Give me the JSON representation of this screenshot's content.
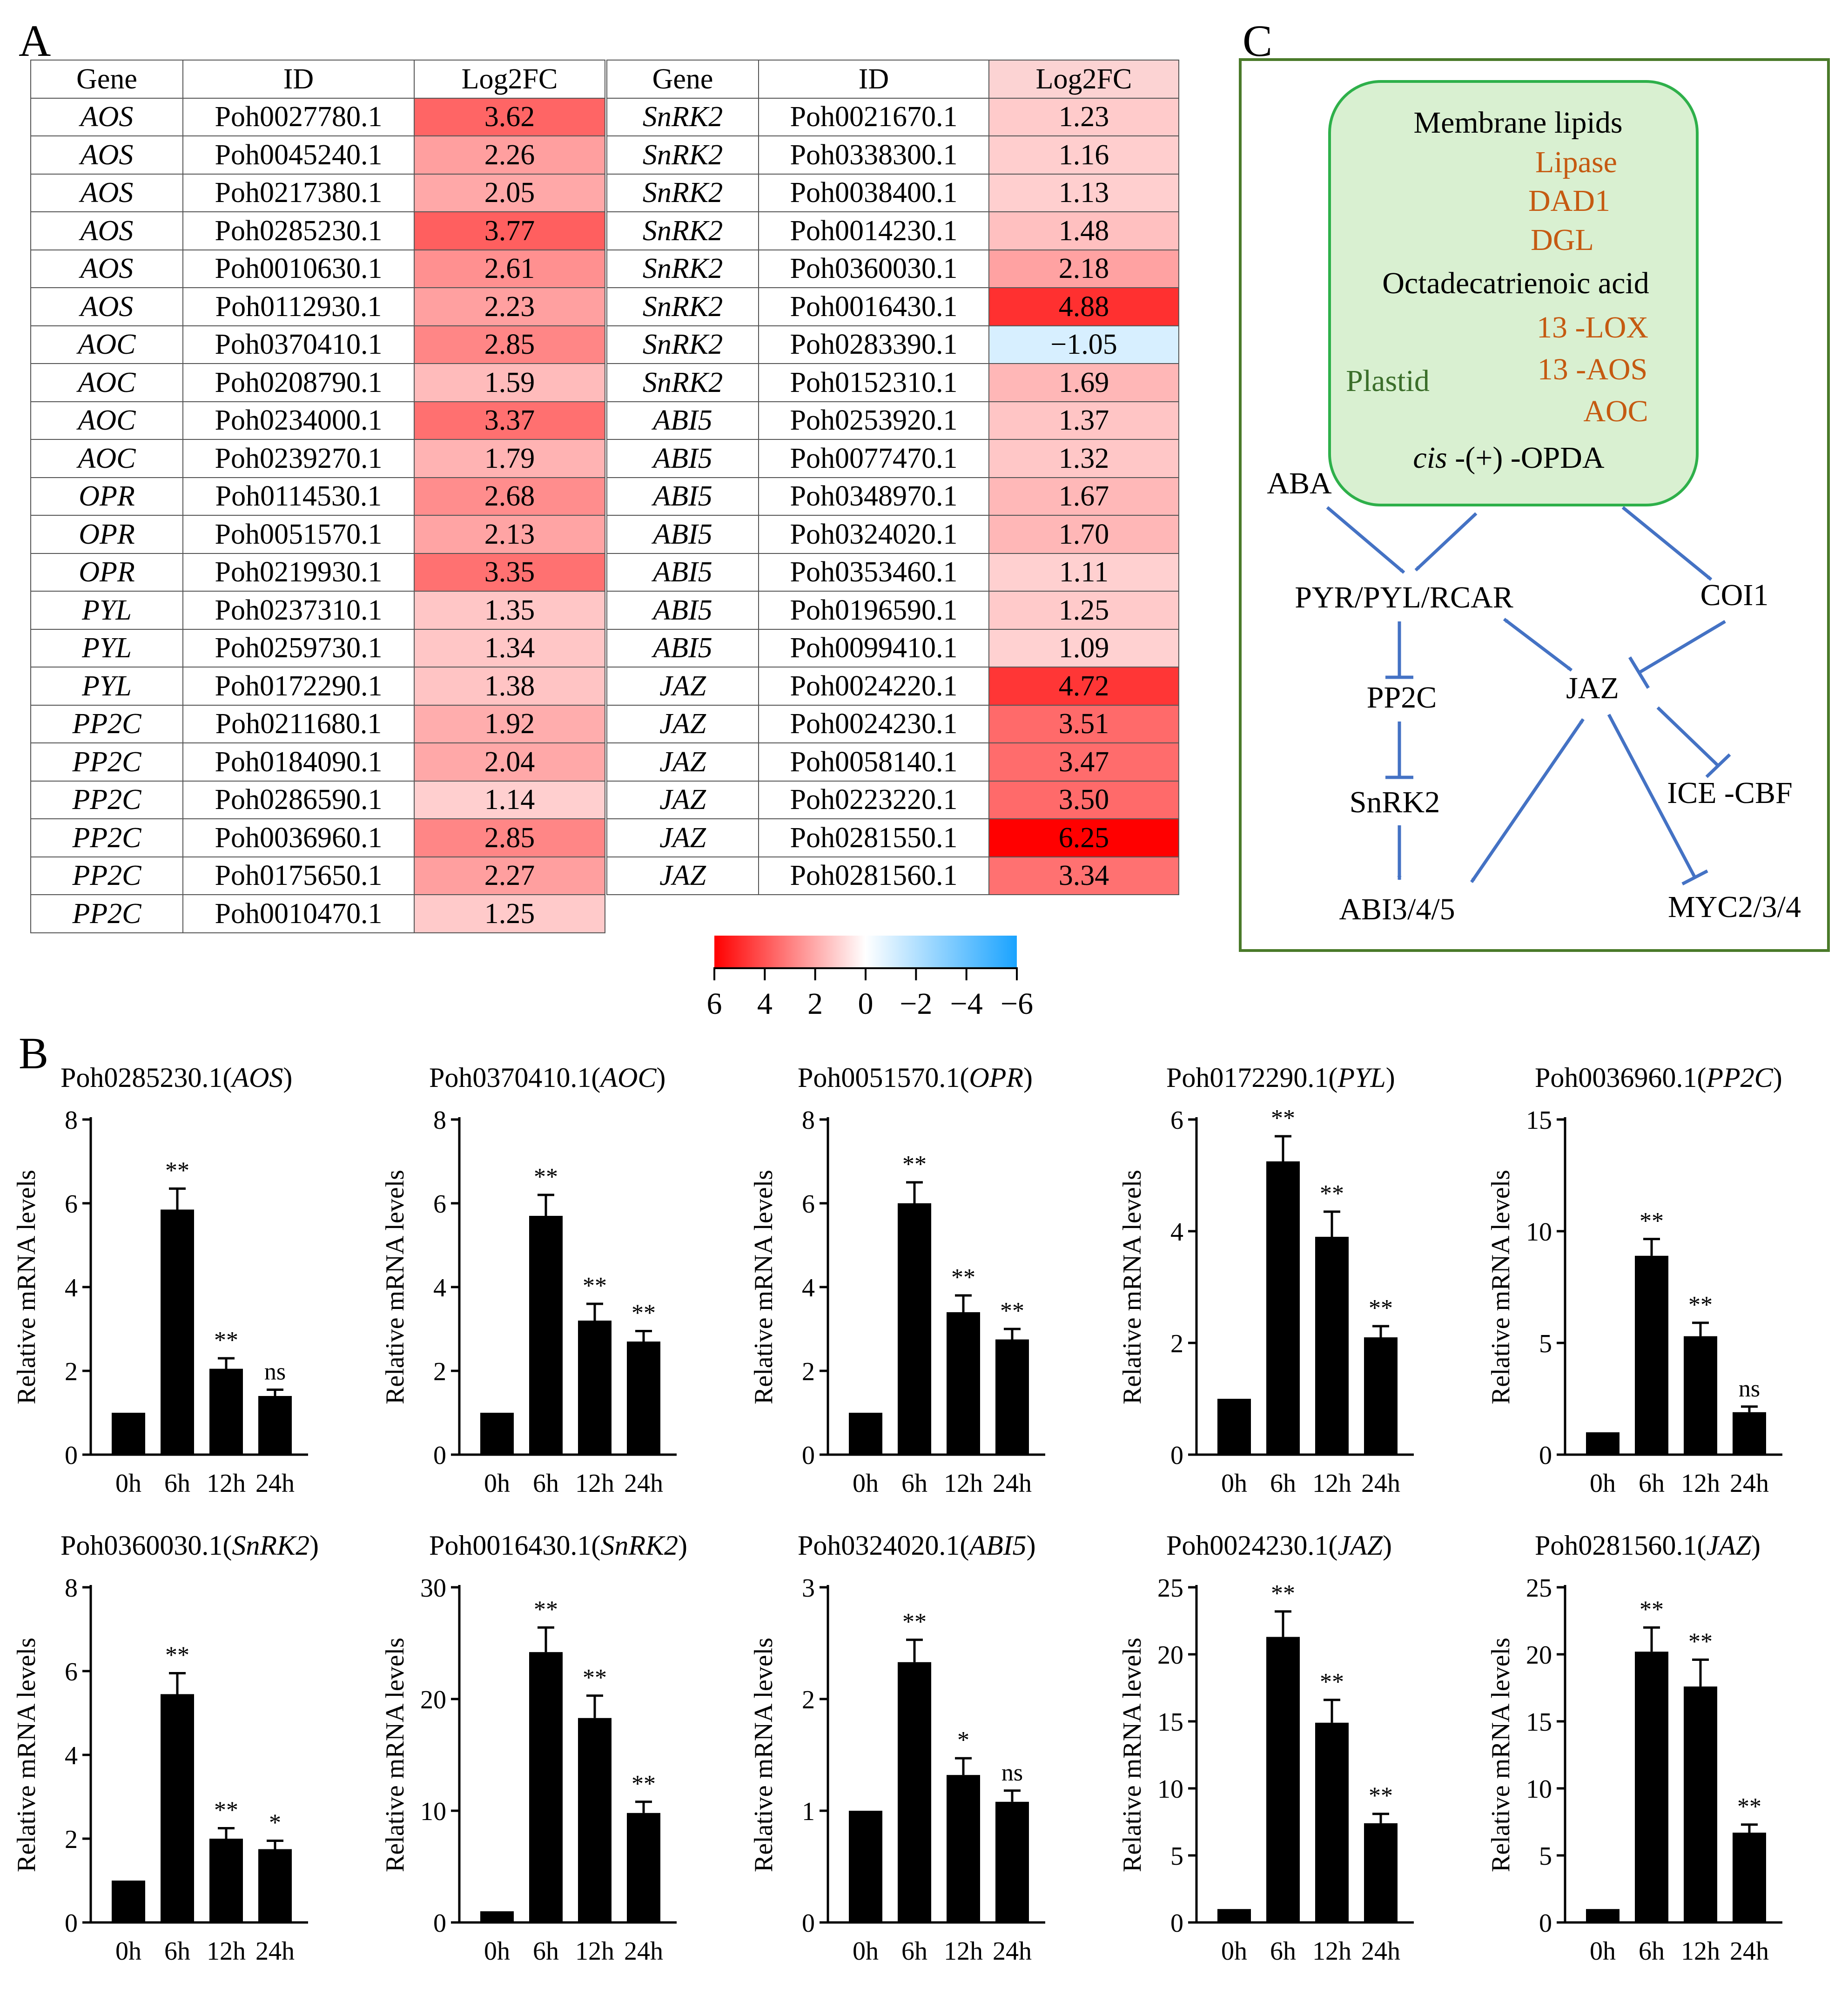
{
  "panel_labels": {
    "a": "A",
    "b": "B",
    "c": "C"
  },
  "table_headers": {
    "gene": "Gene",
    "id": "ID",
    "log2fc": "Log2FC"
  },
  "colorbar": {
    "ticks": [
      "6",
      "4",
      "2",
      "0",
      "−2",
      "−4",
      "−6"
    ],
    "colors": {
      "high": "#ff0000",
      "mid": "#ffffff",
      "low": "#1aa3ff"
    }
  },
  "pathway": {
    "box_border_color": "#4a7a2a",
    "plastid_border_color": "#2eb04a",
    "plastid_fill": "#d9f0d1",
    "arrow_color": "#4472c4",
    "membrane_lipids": "Membrane lipids",
    "lipase": "Lipase",
    "dad1": "DAD1",
    "dgl": "DGL",
    "octadecatrienoic": "Octadecatrienoic acid",
    "lox": "13 -LOX",
    "aos": "13 -AOS",
    "aoc": "AOC",
    "plastid": "Plastid",
    "opda_prefix": "cis",
    "opda_rest": " -(+) -OPDA",
    "aba": "ABA",
    "pyr": "PYR/PYL/RCAR",
    "coi1": "COI1",
    "pp2c": "PP2C",
    "jaz": "JAZ",
    "snrk2": "SnRK2",
    "ice_cbf": "ICE -CBF",
    "abi": "ABI3/4/5",
    "myc": "MYC2/3/4"
  },
  "chart_data": [
    {
      "type": "heatmap",
      "title": "",
      "xlabel": "",
      "ylabel": "",
      "columns": [
        "Gene",
        "ID",
        "Log2FC"
      ],
      "color_range": [
        -6,
        6
      ],
      "rows": [
        {
          "gene": "AOS",
          "id": "Poh0027780.1",
          "value": 3.62
        },
        {
          "gene": "AOS",
          "id": "Poh0045240.1",
          "value": 2.26
        },
        {
          "gene": "AOS",
          "id": "Poh0217380.1",
          "value": 2.05
        },
        {
          "gene": "AOS",
          "id": "Poh0285230.1",
          "value": 3.77
        },
        {
          "gene": "AOS",
          "id": "Poh0010630.1",
          "value": 2.61
        },
        {
          "gene": "AOS",
          "id": "Poh0112930.1",
          "value": 2.23
        },
        {
          "gene": "AOC",
          "id": "Poh0370410.1",
          "value": 2.85
        },
        {
          "gene": "AOC",
          "id": "Poh0208790.1",
          "value": 1.59
        },
        {
          "gene": "AOC",
          "id": "Poh0234000.1",
          "value": 3.37
        },
        {
          "gene": "AOC",
          "id": "Poh0239270.1",
          "value": 1.79
        },
        {
          "gene": "OPR",
          "id": "Poh0114530.1",
          "value": 2.68
        },
        {
          "gene": "OPR",
          "id": "Poh0051570.1",
          "value": 2.13
        },
        {
          "gene": "OPR",
          "id": "Poh0219930.1",
          "value": 3.35
        },
        {
          "gene": "PYL",
          "id": "Poh0237310.1",
          "value": 1.35
        },
        {
          "gene": "PYL",
          "id": "Poh0259730.1",
          "value": 1.34
        },
        {
          "gene": "PYL",
          "id": "Poh0172290.1",
          "value": 1.38
        },
        {
          "gene": "PP2C",
          "id": "Poh0211680.1",
          "value": 1.92
        },
        {
          "gene": "PP2C",
          "id": "Poh0184090.1",
          "value": 2.04
        },
        {
          "gene": "PP2C",
          "id": "Poh0286590.1",
          "value": 1.14
        },
        {
          "gene": "PP2C",
          "id": "Poh0036960.1",
          "value": 2.85
        },
        {
          "gene": "PP2C",
          "id": "Poh0175650.1",
          "value": 2.27
        },
        {
          "gene": "PP2C",
          "id": "Poh0010470.1",
          "value": 1.25
        }
      ]
    },
    {
      "type": "heatmap",
      "title": "",
      "xlabel": "",
      "ylabel": "",
      "columns": [
        "Gene",
        "ID",
        "Log2FC"
      ],
      "color_range": [
        -6,
        6
      ],
      "rows": [
        {
          "gene": "SnRK2",
          "id": "Poh0021670.1",
          "value": 1.23
        },
        {
          "gene": "SnRK2",
          "id": "Poh0338300.1",
          "value": 1.16
        },
        {
          "gene": "SnRK2",
          "id": "Poh0038400.1",
          "value": 1.13
        },
        {
          "gene": "SnRK2",
          "id": "Poh0014230.1",
          "value": 1.48
        },
        {
          "gene": "SnRK2",
          "id": "Poh0360030.1",
          "value": 2.18
        },
        {
          "gene": "SnRK2",
          "id": "Poh0016430.1",
          "value": 4.88
        },
        {
          "gene": "SnRK2",
          "id": "Poh0283390.1",
          "value": -1.05
        },
        {
          "gene": "SnRK2",
          "id": "Poh0152310.1",
          "value": 1.69
        },
        {
          "gene": "ABI5",
          "id": "Poh0253920.1",
          "value": 1.37
        },
        {
          "gene": "ABI5",
          "id": "Poh0077470.1",
          "value": 1.32
        },
        {
          "gene": "ABI5",
          "id": "Poh0348970.1",
          "value": 1.67
        },
        {
          "gene": "ABI5",
          "id": "Poh0324020.1",
          "value": 1.7
        },
        {
          "gene": "ABI5",
          "id": "Poh0353460.1",
          "value": 1.11
        },
        {
          "gene": "ABI5",
          "id": "Poh0196590.1",
          "value": 1.25
        },
        {
          "gene": "ABI5",
          "id": "Poh0099410.1",
          "value": 1.09
        },
        {
          "gene": "JAZ",
          "id": "Poh0024220.1",
          "value": 4.72
        },
        {
          "gene": "JAZ",
          "id": "Poh0024230.1",
          "value": 3.51
        },
        {
          "gene": "JAZ",
          "id": "Poh0058140.1",
          "value": 3.47
        },
        {
          "gene": "JAZ",
          "id": "Poh0223220.1",
          "value": 3.5
        },
        {
          "gene": "JAZ",
          "id": "Poh0281550.1",
          "value": 6.25
        },
        {
          "gene": "JAZ",
          "id": "Poh0281560.1",
          "value": 3.34
        }
      ]
    },
    {
      "type": "bar",
      "title_id": "Poh0285230.1",
      "title_gene": "AOS",
      "categories": [
        "0h",
        "6h",
        "12h",
        "24h"
      ],
      "values": [
        1.0,
        5.85,
        2.05,
        1.4
      ],
      "errors": [
        0,
        0.5,
        0.25,
        0.15
      ],
      "significance": [
        "",
        "**",
        "**",
        "ns"
      ],
      "ylabel": "Relative mRNA levels",
      "xlabel": "",
      "ylim": [
        0,
        8
      ],
      "yticks": [
        0,
        2,
        4,
        6,
        8
      ]
    },
    {
      "type": "bar",
      "title_id": "Poh0370410.1",
      "title_gene": "AOC",
      "categories": [
        "0h",
        "6h",
        "12h",
        "24h"
      ],
      "values": [
        1.0,
        5.7,
        3.2,
        2.7
      ],
      "errors": [
        0,
        0.5,
        0.4,
        0.25
      ],
      "significance": [
        "",
        "**",
        "**",
        "**"
      ],
      "ylabel": "Relative mRNA levels",
      "xlabel": "",
      "ylim": [
        0,
        8
      ],
      "yticks": [
        0,
        2,
        4,
        6,
        8
      ]
    },
    {
      "type": "bar",
      "title_id": "Poh0051570.1",
      "title_gene": "OPR",
      "categories": [
        "0h",
        "6h",
        "12h",
        "24h"
      ],
      "values": [
        1.0,
        6.0,
        3.4,
        2.75
      ],
      "errors": [
        0,
        0.5,
        0.4,
        0.25
      ],
      "significance": [
        "",
        "**",
        "**",
        "**"
      ],
      "ylabel": "Relative mRNA levels",
      "xlabel": "",
      "ylim": [
        0,
        8
      ],
      "yticks": [
        0,
        2,
        4,
        6,
        8
      ]
    },
    {
      "type": "bar",
      "title_id": "Poh0172290.1",
      "title_gene": "PYL",
      "categories": [
        "0h",
        "6h",
        "12h",
        "24h"
      ],
      "values": [
        1.0,
        5.25,
        3.9,
        2.1
      ],
      "errors": [
        0,
        0.45,
        0.45,
        0.2
      ],
      "significance": [
        "",
        "**",
        "**",
        "**"
      ],
      "ylabel": "Relative mRNA levels",
      "xlabel": "",
      "ylim": [
        0,
        6
      ],
      "yticks": [
        0,
        2,
        4,
        6
      ]
    },
    {
      "type": "bar",
      "title_id": "Poh0036960.1",
      "title_gene": "PP2C",
      "categories": [
        "0h",
        "6h",
        "12h",
        "24h"
      ],
      "values": [
        1.0,
        8.9,
        5.3,
        1.9
      ],
      "errors": [
        0,
        0.75,
        0.6,
        0.25
      ],
      "significance": [
        "",
        "**",
        "**",
        "ns"
      ],
      "ylabel": "Relative mRNA levels",
      "xlabel": "",
      "ylim": [
        0,
        15
      ],
      "yticks": [
        0,
        5,
        10,
        15
      ]
    },
    {
      "type": "bar",
      "title_id": "Poh0360030.1",
      "title_gene": "SnRK2",
      "categories": [
        "0h",
        "6h",
        "12h",
        "24h"
      ],
      "values": [
        1.0,
        5.45,
        2.0,
        1.75
      ],
      "errors": [
        0,
        0.5,
        0.25,
        0.2
      ],
      "significance": [
        "",
        "**",
        "**",
        "*"
      ],
      "ylabel": "Relative mRNA levels",
      "xlabel": "",
      "ylim": [
        0,
        8
      ],
      "yticks": [
        0,
        2,
        4,
        6,
        8
      ]
    },
    {
      "type": "bar",
      "title_id": "Poh0016430.1",
      "title_gene": "SnRK2",
      "categories": [
        "0h",
        "6h",
        "12h",
        "24h"
      ],
      "values": [
        1.0,
        24.2,
        18.3,
        9.8
      ],
      "errors": [
        0,
        2.2,
        2.0,
        1.0
      ],
      "significance": [
        "",
        "**",
        "**",
        "**"
      ],
      "ylabel": "Relative mRNA levels",
      "xlabel": "",
      "ylim": [
        0,
        30
      ],
      "yticks": [
        0,
        10,
        20,
        30
      ]
    },
    {
      "type": "bar",
      "title_id": "Poh0324020.1",
      "title_gene": "ABI5",
      "categories": [
        "0h",
        "6h",
        "12h",
        "24h"
      ],
      "values": [
        1.0,
        2.33,
        1.32,
        1.08
      ],
      "errors": [
        0,
        0.2,
        0.15,
        0.1
      ],
      "significance": [
        "",
        "**",
        "*",
        "ns"
      ],
      "ylabel": "Relative mRNA levels",
      "xlabel": "",
      "ylim": [
        0,
        3
      ],
      "yticks": [
        0,
        1,
        2,
        3
      ]
    },
    {
      "type": "bar",
      "title_id": "Poh0024230.1",
      "title_gene": "JAZ",
      "categories": [
        "0h",
        "6h",
        "12h",
        "24h"
      ],
      "values": [
        1.0,
        21.3,
        14.9,
        7.4
      ],
      "errors": [
        0,
        1.9,
        1.7,
        0.7
      ],
      "significance": [
        "",
        "**",
        "**",
        "**"
      ],
      "ylabel": "Relative mRNA levels",
      "xlabel": "",
      "ylim": [
        0,
        25
      ],
      "yticks": [
        0,
        5,
        10,
        15,
        20,
        25
      ]
    },
    {
      "type": "bar",
      "title_id": "Poh0281560.1",
      "title_gene": "JAZ",
      "categories": [
        "0h",
        "6h",
        "12h",
        "24h"
      ],
      "values": [
        1.0,
        20.2,
        17.6,
        6.7
      ],
      "errors": [
        0,
        1.8,
        2.0,
        0.6
      ],
      "significance": [
        "",
        "**",
        "**",
        "**"
      ],
      "ylabel": "Relative mRNA levels",
      "xlabel": "",
      "ylim": [
        0,
        25
      ],
      "yticks": [
        0,
        5,
        10,
        15,
        20,
        25
      ]
    }
  ]
}
